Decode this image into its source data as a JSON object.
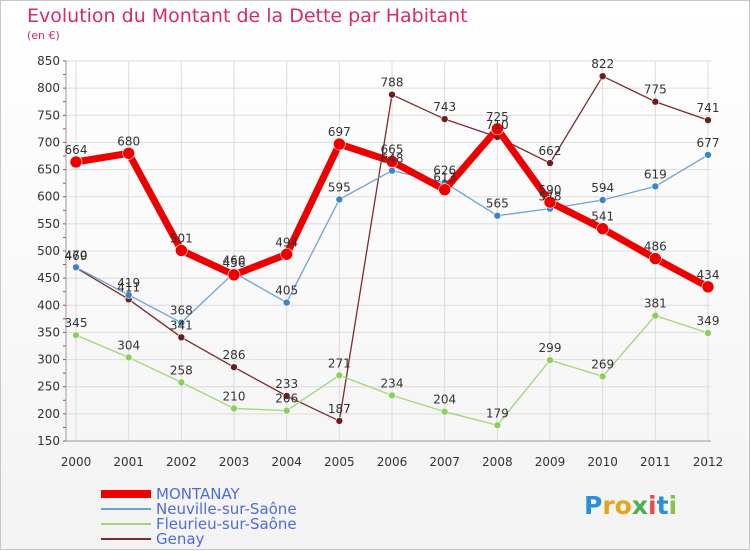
{
  "title": "Evolution du Montant de la Dette par Habitant",
  "unit": "(en €)",
  "logo": {
    "letters": [
      "P",
      "r",
      "o",
      "x",
      "i",
      "t",
      "i"
    ],
    "colors": [
      "#2b8fd8",
      "#e8a21b",
      "#e8a21b",
      "#4caf50",
      "#e84a4a",
      "#2b8fd8",
      "#8bc34a"
    ]
  },
  "chart_data": {
    "type": "line",
    "title": "Evolution du Montant de la Dette par Habitant",
    "ylabel": "(en €)",
    "x": [
      "2000",
      "2001",
      "2002",
      "2003",
      "2004",
      "2005",
      "2006",
      "2007",
      "2008",
      "2009",
      "2010",
      "2011",
      "2012"
    ],
    "ylim": [
      150,
      850
    ],
    "yticks": [
      150,
      200,
      250,
      300,
      350,
      400,
      450,
      500,
      550,
      600,
      650,
      700,
      750,
      800,
      850
    ],
    "grid": true,
    "legend_position": "bottom-left",
    "series": [
      {
        "name": "MONTANAY",
        "color": "#ee0000",
        "values": [
          664,
          680,
          501,
          456,
          494,
          697,
          665,
          613,
          725,
          590,
          541,
          486,
          434
        ]
      },
      {
        "name": "Neuville-sur-Saône",
        "color": "#6fa2d3",
        "values": [
          470,
          419,
          368,
          460,
          405,
          595,
          648,
          626,
          565,
          578,
          594,
          619,
          677
        ]
      },
      {
        "name": "Fleurieu-sur-Saône",
        "color": "#9fd77a",
        "values": [
          345,
          304,
          258,
          210,
          206,
          271,
          234,
          204,
          179,
          299,
          269,
          381,
          349
        ]
      },
      {
        "name": "Genay",
        "color": "#7b2b2b",
        "values": [
          469,
          411,
          341,
          286,
          233,
          187,
          788,
          743,
          710,
          662,
          822,
          775,
          741
        ]
      }
    ]
  }
}
